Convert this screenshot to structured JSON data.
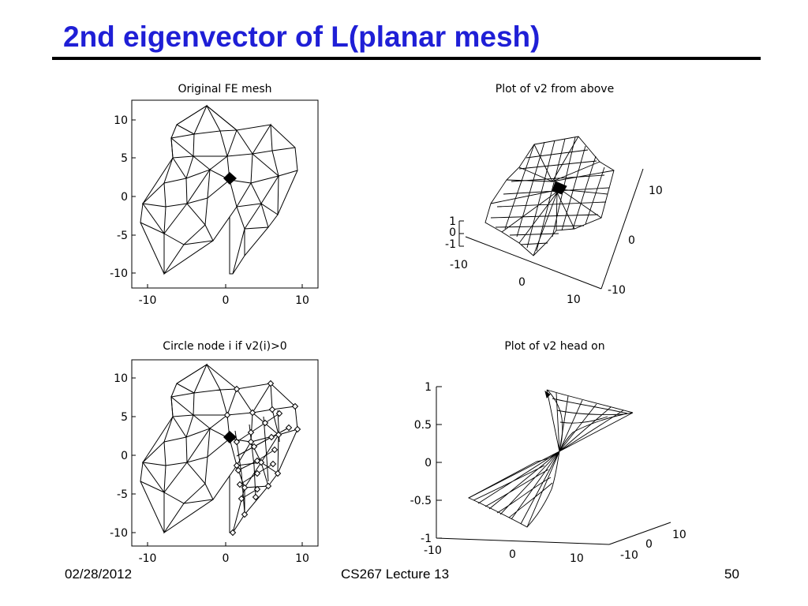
{
  "slide": {
    "title": "2nd eigenvector of L(planar mesh)",
    "title_color": "#1f1fd6"
  },
  "panels": {
    "original_mesh": {
      "title": "Original FE mesh",
      "yticks": [
        "10",
        "5",
        "0",
        "-5",
        "-10"
      ],
      "xticks": [
        "-10",
        "0",
        "10"
      ]
    },
    "v2_above": {
      "title": "Plot of v2 from above",
      "z_ticks": [
        "1",
        "0",
        "-1"
      ],
      "x_ticks": [
        "-10",
        "0",
        "10"
      ],
      "y_ticks": [
        "10",
        "0",
        "-10"
      ]
    },
    "circle_nodes": {
      "title": "Circle node i if v2(i)>0",
      "yticks": [
        "10",
        "5",
        "0",
        "-5",
        "-10"
      ],
      "xticks": [
        "-10",
        "0",
        "10"
      ]
    },
    "v2_headon": {
      "title": "Plot of v2 head on",
      "yticks": [
        "1",
        "0.5",
        "0",
        "-0.5",
        "-1"
      ],
      "x_ticks": [
        "-10",
        "0",
        "10"
      ],
      "y_ticks": [
        "-10",
        "0",
        "10"
      ]
    }
  },
  "footer": {
    "date": "02/28/2012",
    "course": "CS267 Lecture 13",
    "page": "50"
  }
}
